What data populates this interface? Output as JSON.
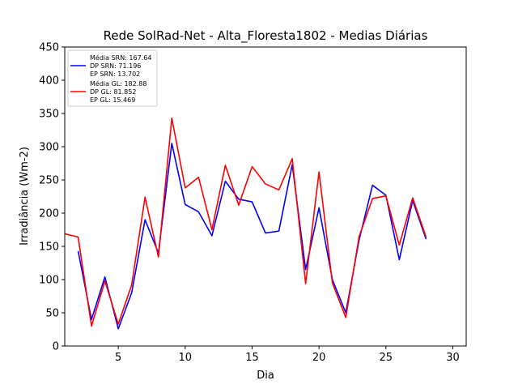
{
  "chart_data": {
    "type": "line",
    "title": "Rede SolRad-Net - Alta_Floresta1802 - Medias Diárias",
    "xlabel": "Dia",
    "ylabel": "Irradiância (Wm-2)",
    "xlim": [
      1,
      31
    ],
    "ylim": [
      0,
      450
    ],
    "xticks": [
      5,
      10,
      15,
      20,
      25,
      30
    ],
    "yticks": [
      0,
      50,
      100,
      150,
      200,
      250,
      300,
      350,
      400,
      450
    ],
    "grid": false,
    "legend_position": "upper-left",
    "legend": [
      {
        "lines": [
          "Média SRN: 167.64",
          "DP SRN: 71.196",
          "EP SRN: 13.702"
        ],
        "color": "#0000ff"
      },
      {
        "lines": [
          "Média GL: 182.88",
          "DP GL: 81.852",
          "EP GL: 15.469"
        ],
        "color": "#ff0000"
      }
    ],
    "series": [
      {
        "color": "#0000ff",
        "x": [
          2,
          3,
          4,
          5,
          6,
          7,
          8,
          9,
          10,
          11,
          12,
          13,
          14,
          15,
          16,
          17,
          18,
          19,
          20,
          21,
          22,
          23,
          24,
          25,
          26,
          27,
          28
        ],
        "y": [
          143,
          40,
          104,
          26,
          80,
          190,
          140,
          305,
          213,
          202,
          166,
          248,
          221,
          217,
          170,
          173,
          273,
          115,
          208,
          100,
          50,
          160,
          242,
          227,
          130,
          219,
          161
        ]
      },
      {
        "color": "#ff0000",
        "x": [
          1,
          2,
          3,
          4,
          5,
          6,
          7,
          8,
          9,
          10,
          11,
          12,
          13,
          14,
          15,
          16,
          17,
          18,
          19,
          20,
          21,
          22,
          23,
          24,
          25,
          26,
          27,
          28
        ],
        "y": [
          169,
          164,
          30,
          98,
          33,
          92,
          224,
          134,
          343,
          238,
          254,
          175,
          272,
          212,
          270,
          244,
          235,
          282,
          94,
          262,
          95,
          43,
          165,
          222,
          226,
          152,
          223,
          164
        ]
      }
    ]
  }
}
